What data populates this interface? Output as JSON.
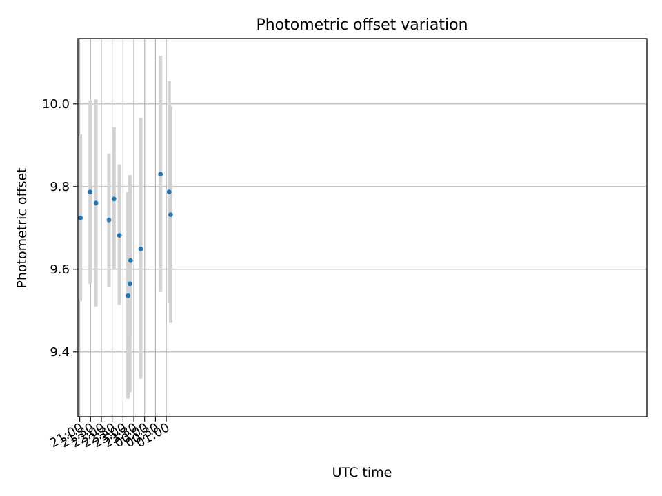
{
  "chart_data": {
    "type": "scatter",
    "title": "Photometric offset variation",
    "xlabel": "UTC time",
    "ylabel": "Photometric offset",
    "x_axis": {
      "range": [
        "20:55",
        "23:13 +1"
      ],
      "ticks": [
        {
          "label": "21:00",
          "time": "21:00"
        },
        {
          "label": "21:30",
          "time": "21:30"
        },
        {
          "label": "22:00",
          "time": "22:00"
        },
        {
          "label": "22:30",
          "time": "22:30"
        },
        {
          "label": "23:00",
          "time": "23:00"
        },
        {
          "label": "23:30",
          "time": "23:30"
        },
        {
          "label": "00:00",
          "time": "00:00"
        },
        {
          "label": "00:30",
          "time": "00:30"
        },
        {
          "label": "01:00",
          "time": "01:00"
        }
      ]
    },
    "y_axis": {
      "range": [
        9.243,
        10.158
      ],
      "ticks": [
        {
          "label": "9.4",
          "value": 9.4
        },
        {
          "label": "9.6",
          "value": 9.6
        },
        {
          "label": "9.8",
          "value": 9.8
        },
        {
          "label": "10.0",
          "value": 10.0
        }
      ]
    },
    "grid": true,
    "point_color": "#1f77b4",
    "error_bar_color": "#d3d3d3",
    "points": [
      {
        "time": "21:02",
        "y": 9.724,
        "y_low": 9.522,
        "y_high": 9.927
      },
      {
        "time": "21:29",
        "y": 9.787,
        "y_low": 9.565,
        "y_high": 10.008
      },
      {
        "time": "21:45",
        "y": 9.76,
        "y_low": 9.51,
        "y_high": 10.011
      },
      {
        "time": "22:21",
        "y": 9.719,
        "y_low": 9.558,
        "y_high": 9.88
      },
      {
        "time": "22:35",
        "y": 9.77,
        "y_low": 9.601,
        "y_high": 9.943
      },
      {
        "time": "22:50",
        "y": 9.682,
        "y_low": 9.513,
        "y_high": 9.854
      },
      {
        "time": "23:14",
        "y": 9.536,
        "y_low": 9.287,
        "y_high": 9.787
      },
      {
        "time": "23:19",
        "y": 9.565,
        "y_low": 9.303,
        "y_high": 9.828
      },
      {
        "time": "23:21",
        "y": 9.621,
        "y_low": 9.438,
        "y_high": 9.806
      },
      {
        "time": "23:49",
        "y": 9.649,
        "y_low": 9.335,
        "y_high": 9.966
      },
      {
        "time": "00:44",
        "y": 9.83,
        "y_low": 9.545,
        "y_high": 10.116
      },
      {
        "time": "01:08",
        "y": 9.787,
        "y_low": 9.518,
        "y_high": 10.055
      },
      {
        "time": "01:12",
        "y": 9.732,
        "y_low": 9.47,
        "y_high": 9.994
      }
    ]
  }
}
